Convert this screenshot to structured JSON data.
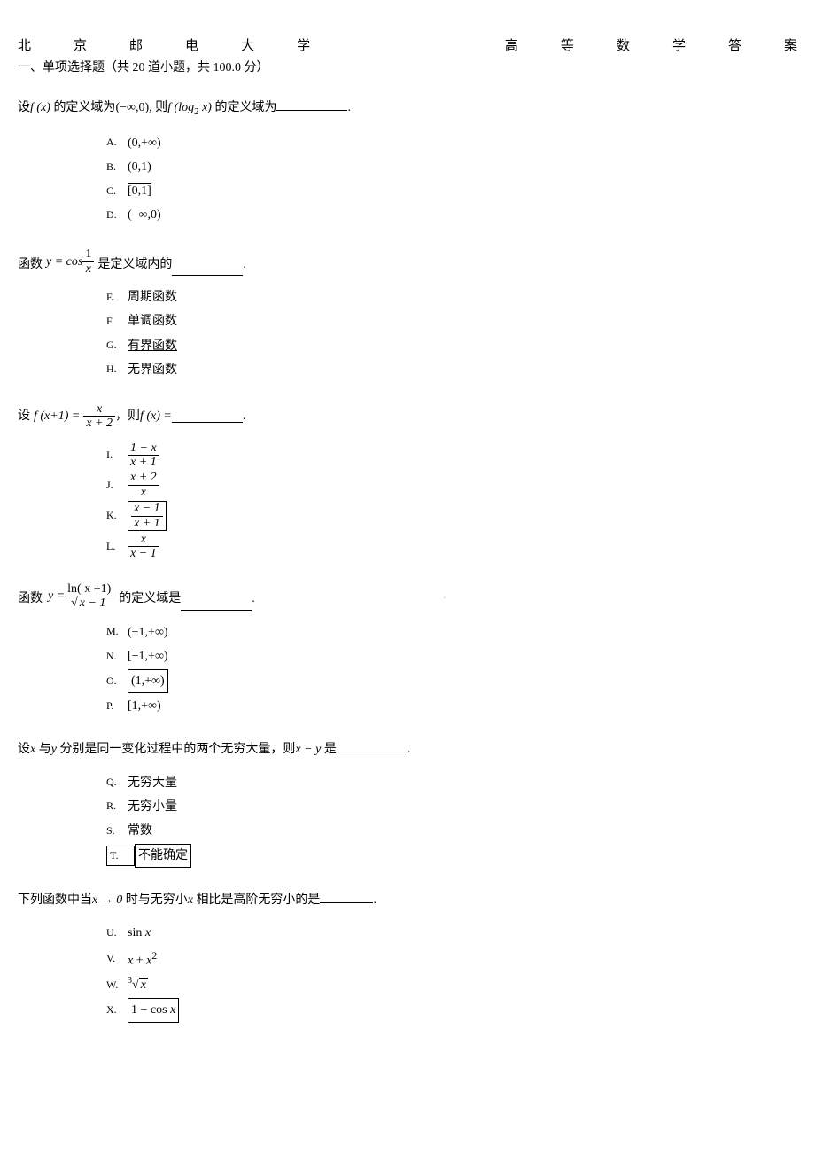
{
  "header": {
    "left": [
      "北",
      "京",
      "邮",
      "电",
      "大",
      "学"
    ],
    "right": [
      "高",
      "等",
      "数",
      "学",
      "答",
      "案"
    ]
  },
  "subtitle": "一、单项选择题（共 20 道小题，共 100.0 分）",
  "questions": [
    {
      "stem_prefix": "设",
      "stem_math1": "f (x)",
      "stem_mid1": " 的定义域为",
      "stem_math2": "(−∞,0),",
      "stem_mid2": " 则",
      "stem_math3": "f (log",
      "stem_sub": "2",
      "stem_math3b": " x)",
      "stem_suffix": " 的定义域为",
      "options": [
        {
          "label": "A.",
          "text": "(0,+∞)",
          "boxed": false
        },
        {
          "label": "B.",
          "text": "(0,1)",
          "boxed": false
        },
        {
          "label": "C.",
          "text": "[0,1]",
          "boxed": true,
          "overline": true
        },
        {
          "label": "D.",
          "text": "(−∞,0)",
          "boxed": false
        }
      ]
    },
    {
      "stem_prefix": "函数",
      "stem_math": "y = cos",
      "frac_num": "1",
      "frac_den": "x",
      "stem_suffix": " 是定义域内的",
      "options": [
        {
          "label": "E.",
          "text": "周期函数",
          "underline": false
        },
        {
          "label": "F.",
          "text": "单调函数",
          "underline": false
        },
        {
          "label": "G.",
          "text": "有界函数",
          "underline": true
        },
        {
          "label": "H.",
          "text": "无界函数",
          "underline": false
        }
      ]
    },
    {
      "stem_prefix": "设",
      "lhs": "f (x+1) =",
      "frac_num": "x",
      "frac_den": "x + 2",
      "stem_mid": "，则",
      "rhs": "f (x) =",
      "options": [
        {
          "label": "I.",
          "num": "1 − x",
          "den": "x + 1",
          "boxed": false
        },
        {
          "label": "J.",
          "num": "x + 2",
          "den": "x",
          "boxed": false
        },
        {
          "label": "K.",
          "num": "x − 1",
          "den": "x + 1",
          "boxed": true
        },
        {
          "label": "L.",
          "num": "x",
          "den": "x − 1",
          "boxed": false
        }
      ]
    },
    {
      "stem_prefix": "函数",
      "lhs": "y =",
      "frac_num": "ln( x +1)",
      "frac_den_sqrt": "x − 1",
      "stem_suffix": " 的定义域是",
      "options": [
        {
          "label": "M.",
          "text": "(−1,+∞)",
          "boxed": false
        },
        {
          "label": "N.",
          "text": "[−1,+∞)",
          "boxed": false
        },
        {
          "label": "O.",
          "text": "(1,+∞)",
          "boxed": true
        },
        {
          "label": "P.",
          "text": "[1,+∞)",
          "boxed": false
        }
      ]
    },
    {
      "stem_prefix": "设",
      "var1": "x",
      "mid1": " 与",
      "var2": "y",
      "mid2": " 分别是同一变化过程中的两个无穷大量，则",
      "expr": "x − y",
      "suffix": " 是",
      "options": [
        {
          "label": "Q.",
          "text": "无穷大量",
          "boxed": false
        },
        {
          "label": "R.",
          "text": "无穷小量",
          "boxed": false
        },
        {
          "label": "S.",
          "text": "常数",
          "boxed": false
        },
        {
          "label": "T.",
          "text": "不能确定",
          "boxed": true
        }
      ]
    },
    {
      "stem_prefix": "下列函数中当",
      "expr": "x → 0",
      "mid": " 时与无穷小",
      "var": "x",
      "suffix": " 相比是高阶无穷小的是",
      "options": [
        {
          "label": "U.",
          "html": "sin <span class='math'>x</span>",
          "boxed": false
        },
        {
          "label": "V.",
          "html": "<span class='math'>x</span> + <span class='math'>x</span><sup>2</sup>",
          "boxed": false
        },
        {
          "label": "W.",
          "html": "<sup style='font-size:10px'>3</sup><span class='radical'></span><span class='sqrt math'>x</span>",
          "boxed": false
        },
        {
          "label": "X.",
          "html": "1 − cos <span class='math'>x</span>",
          "boxed": true
        }
      ]
    }
  ]
}
